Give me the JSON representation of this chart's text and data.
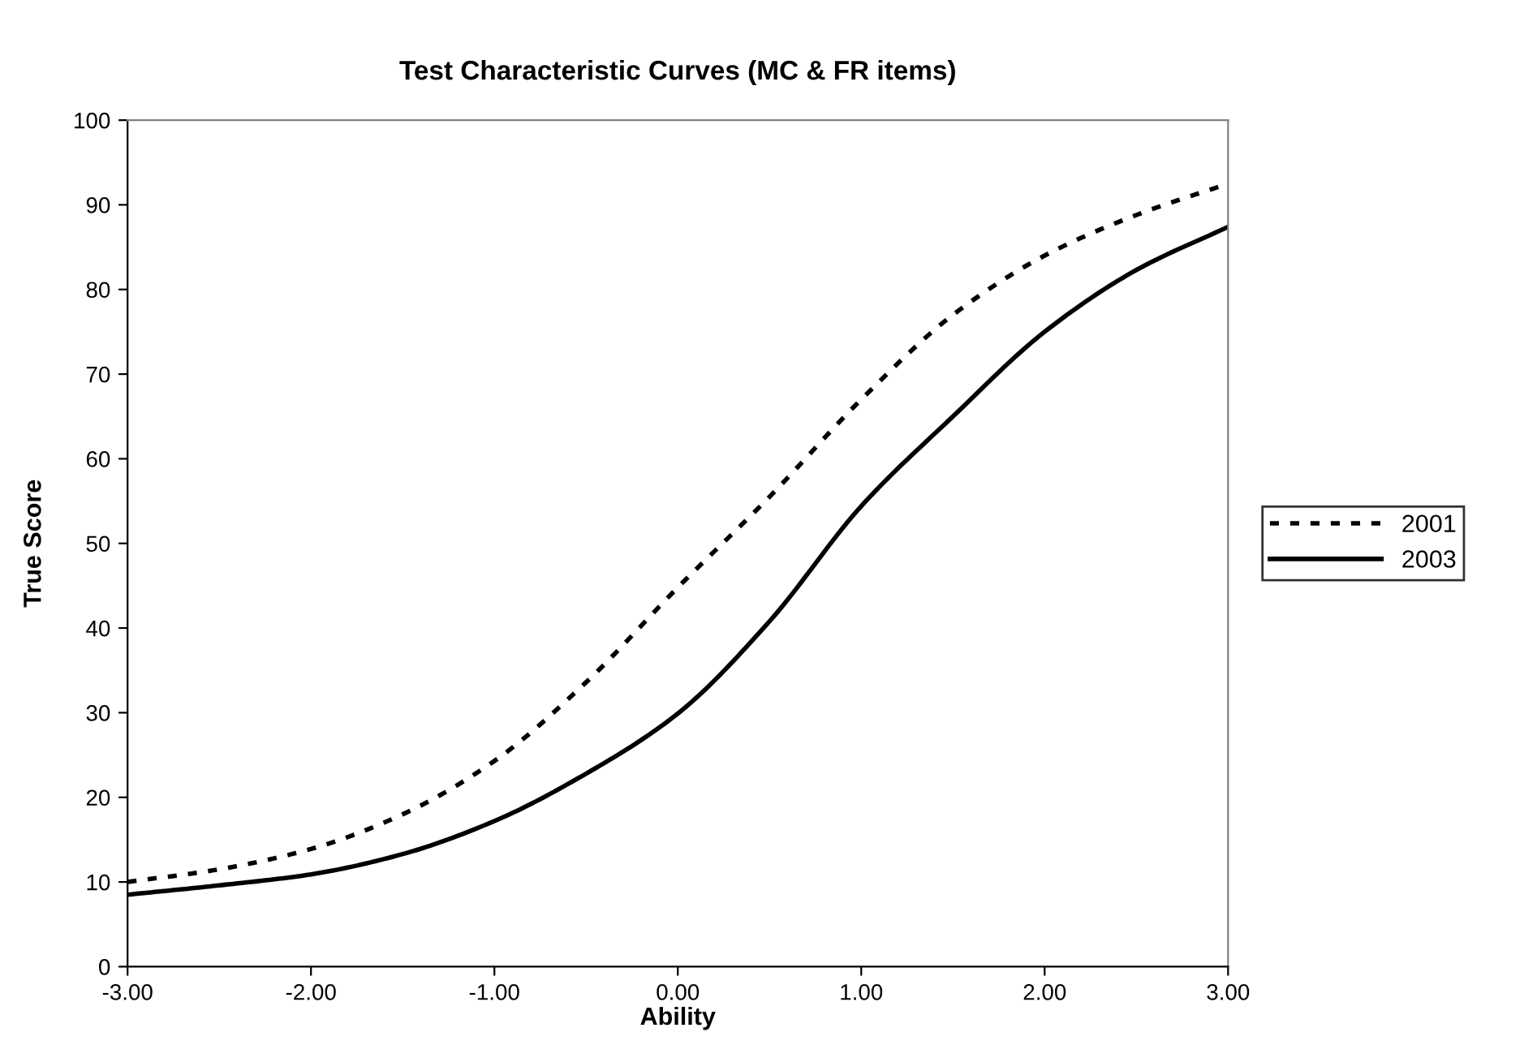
{
  "chart_data": {
    "type": "line",
    "title": "Test Characteristic Curves (MC & FR items)",
    "xlabel": "Ability",
    "ylabel": "True Score",
    "x": [
      -3,
      -2.5,
      -2,
      -1.5,
      -1,
      -0.5,
      0,
      0.5,
      1,
      1.5,
      2,
      2.5,
      3
    ],
    "series": [
      {
        "name": "2001",
        "color": "#000000",
        "line_style": "dotted",
        "values": [
          10,
          11.5,
          13.9,
          18,
          24.3,
          33.6,
          44.8,
          55.5,
          67,
          77,
          84,
          88.8,
          92.5
        ]
      },
      {
        "name": "2003",
        "color": "#000000",
        "line_style": "solid",
        "values": [
          8.5,
          9.6,
          10.9,
          13.3,
          17.2,
          22.8,
          29.9,
          40.8,
          54.4,
          65,
          75,
          82.3,
          87.4
        ]
      }
    ],
    "xlim": [
      -3,
      3
    ],
    "xticks": [
      {
        "value": -3,
        "label": "-3.00"
      },
      {
        "value": -2,
        "label": "-2.00"
      },
      {
        "value": -1,
        "label": "-1.00"
      },
      {
        "value": 0,
        "label": "0.00"
      },
      {
        "value": 1,
        "label": "1.00"
      },
      {
        "value": 2,
        "label": "2.00"
      },
      {
        "value": 3,
        "label": "3.00"
      }
    ],
    "ylim": [
      0,
      100
    ],
    "yticks": [
      0,
      10,
      20,
      30,
      40,
      50,
      60,
      70,
      80,
      90,
      100
    ],
    "grid": false,
    "legend": "right",
    "marker": "none"
  }
}
